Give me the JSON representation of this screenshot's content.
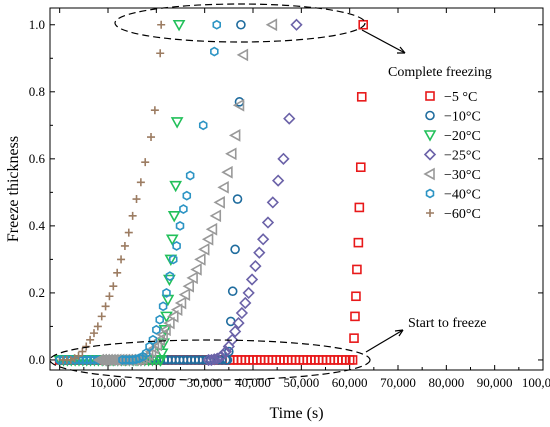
{
  "chart_data": {
    "type": "scatter",
    "xlabel": "Time (s)",
    "ylabel": "Freeze thickness",
    "xlim": [
      -2000,
      100000
    ],
    "ylim": [
      -0.03,
      1.05
    ],
    "x_ticks": [
      0,
      10000,
      20000,
      30000,
      40000,
      50000,
      60000,
      70000,
      80000,
      90000,
      100000
    ],
    "x_tick_labels": [
      "0",
      "10,000",
      "20,000",
      "30,000",
      "40,000",
      "50,000",
      "60,000",
      "70,000",
      "80,000",
      "90,000",
      "100,000"
    ],
    "y_ticks": [
      0.0,
      0.2,
      0.4,
      0.6,
      0.8,
      1.0
    ],
    "y_tick_labels": [
      "0.0",
      "0.2",
      "0.4",
      "0.6",
      "0.8",
      "1.0"
    ],
    "legend_position": "right",
    "annotations": [
      {
        "text": "Complete freezing",
        "target": "top"
      },
      {
        "text": "Start to freeze",
        "target": "bottom"
      }
    ],
    "series": [
      {
        "name": "−5  °C",
        "marker": "square",
        "color": "#e8191a",
        "x": [
          62800,
          62500,
          62300,
          62000,
          61800,
          61500,
          61300,
          61100,
          60900,
          60600
        ],
        "y": [
          1.0,
          0.785,
          0.575,
          0.455,
          0.35,
          0.27,
          0.19,
          0.13,
          0.065,
          0.0
        ]
      },
      {
        "name": "−10°C",
        "marker": "circle",
        "color": "#1f6c9e",
        "x": [
          37500,
          37200,
          36800,
          36300,
          35800,
          35400,
          35000,
          34700
        ],
        "y": [
          1.0,
          0.77,
          0.48,
          0.33,
          0.205,
          0.115,
          0.025,
          0.0
        ]
      },
      {
        "name": "−20°C",
        "marker": "triangle-down",
        "color": "#22c05a",
        "x": [
          24700,
          24300,
          24000,
          23700,
          23300,
          23000,
          22700,
          22400,
          22100,
          21800,
          21500,
          21200,
          20900
        ],
        "y": [
          1.0,
          0.71,
          0.52,
          0.43,
          0.36,
          0.3,
          0.24,
          0.18,
          0.13,
          0.09,
          0.05,
          0.02,
          0.0
        ]
      },
      {
        "name": "−25°C",
        "marker": "diamond",
        "color": "#6b62a8",
        "x": [
          49000,
          47500,
          46300,
          45200,
          44100,
          43100,
          42100,
          41300,
          40500,
          39800,
          39100,
          38400,
          37700,
          37000,
          36300,
          35700,
          35000,
          34400,
          33800,
          33200,
          32600,
          32000,
          31400,
          30800
        ],
        "y": [
          1.0,
          0.72,
          0.6,
          0.535,
          0.47,
          0.41,
          0.36,
          0.32,
          0.28,
          0.24,
          0.2,
          0.17,
          0.14,
          0.11,
          0.085,
          0.06,
          0.04,
          0.025,
          0.015,
          0.008,
          0.004,
          0.002,
          0.0,
          0.0
        ]
      },
      {
        "name": "−30°C",
        "marker": "triangle-left",
        "color": "#999999",
        "x": [
          44000,
          38000,
          37200,
          36400,
          35600,
          34800,
          34000,
          33200,
          32400,
          31600,
          30800,
          30000,
          29200,
          28400,
          27600,
          26800,
          26000,
          25200,
          24400,
          23600,
          22800,
          22000,
          21400,
          20800,
          20200,
          19600,
          19000,
          18400,
          17800,
          17200,
          16600,
          16000,
          15400,
          14800,
          14200,
          13600,
          13000,
          12400,
          11800,
          11200,
          10600,
          10000,
          9400,
          8800,
          8200
        ],
        "y": [
          1.0,
          0.91,
          0.76,
          0.67,
          0.615,
          0.56,
          0.515,
          0.47,
          0.43,
          0.39,
          0.36,
          0.33,
          0.3,
          0.27,
          0.245,
          0.22,
          0.195,
          0.17,
          0.15,
          0.13,
          0.11,
          0.09,
          0.075,
          0.06,
          0.045,
          0.035,
          0.025,
          0.015,
          0.008,
          0.004,
          0.002,
          0.0,
          0.0,
          0.0,
          0.0,
          0.0,
          0.0,
          0.0,
          0.0,
          0.0,
          0.0,
          0.0,
          0.0,
          0.0,
          0.0
        ]
      },
      {
        "name": "−40°C",
        "marker": "hexagon",
        "color": "#2c94c4",
        "x": [
          32500,
          32000,
          29700,
          27000,
          26300,
          25600,
          24900,
          24200,
          23500,
          22800,
          22100,
          21400,
          20700,
          20000,
          19300,
          18600,
          17900,
          17200,
          16500,
          15800,
          15100,
          14400,
          13700,
          13000
        ],
        "y": [
          1.0,
          0.92,
          0.7,
          0.55,
          0.49,
          0.45,
          0.4,
          0.34,
          0.3,
          0.25,
          0.2,
          0.16,
          0.12,
          0.09,
          0.06,
          0.04,
          0.02,
          0.01,
          0.005,
          0.002,
          0.0,
          0.0,
          0.0,
          0.0
        ]
      },
      {
        "name": "−60°C",
        "marker": "plus",
        "color": "#9c7c62",
        "x": [
          21000,
          20800,
          19700,
          18900,
          17700,
          16800,
          15900,
          15100,
          14300,
          13500,
          12700,
          11900,
          11100,
          10300,
          9500,
          8700,
          7900,
          7100,
          6300,
          5500,
          4700,
          3900,
          3100,
          2300,
          1500,
          700
        ],
        "y": [
          1.0,
          0.915,
          0.745,
          0.665,
          0.59,
          0.53,
          0.48,
          0.43,
          0.38,
          0.34,
          0.3,
          0.26,
          0.22,
          0.19,
          0.16,
          0.13,
          0.1,
          0.08,
          0.06,
          0.04,
          0.025,
          0.012,
          0.005,
          0.0,
          0.0,
          0.0
        ]
      }
    ]
  }
}
